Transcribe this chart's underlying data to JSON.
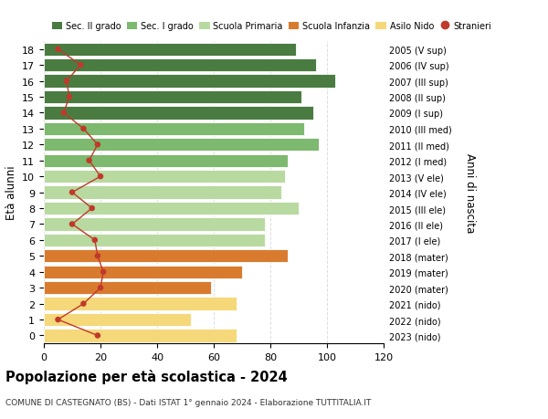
{
  "ages": [
    18,
    17,
    16,
    15,
    14,
    13,
    12,
    11,
    10,
    9,
    8,
    7,
    6,
    5,
    4,
    3,
    2,
    1,
    0
  ],
  "bar_values": [
    89,
    96,
    103,
    91,
    95,
    92,
    97,
    86,
    85,
    84,
    90,
    78,
    78,
    86,
    70,
    59,
    68,
    52,
    68
  ],
  "bar_colors": [
    "#4a7c41",
    "#4a7c41",
    "#4a7c41",
    "#4a7c41",
    "#4a7c41",
    "#7db96e",
    "#7db96e",
    "#7db96e",
    "#b8d9a0",
    "#b8d9a0",
    "#b8d9a0",
    "#b8d9a0",
    "#b8d9a0",
    "#d97b2e",
    "#d97b2e",
    "#d97b2e",
    "#f5d87a",
    "#f5d87a",
    "#f5d87a"
  ],
  "stranieri_values": [
    5,
    13,
    8,
    9,
    7,
    14,
    19,
    16,
    20,
    10,
    17,
    10,
    18,
    19,
    21,
    20,
    14,
    5,
    19
  ],
  "right_labels": [
    "2005 (V sup)",
    "2006 (IV sup)",
    "2007 (III sup)",
    "2008 (II sup)",
    "2009 (I sup)",
    "2010 (III med)",
    "2011 (II med)",
    "2012 (I med)",
    "2013 (V ele)",
    "2014 (IV ele)",
    "2015 (III ele)",
    "2016 (II ele)",
    "2017 (I ele)",
    "2018 (mater)",
    "2019 (mater)",
    "2020 (mater)",
    "2021 (nido)",
    "2022 (nido)",
    "2023 (nido)"
  ],
  "legend_labels": [
    "Sec. II grado",
    "Sec. I grado",
    "Scuola Primaria",
    "Scuola Infanzia",
    "Asilo Nido",
    "Stranieri"
  ],
  "legend_colors": [
    "#4a7c41",
    "#7db96e",
    "#b8d9a0",
    "#d97b2e",
    "#f5d87a",
    "#c0392b"
  ],
  "ylabel": "Età alunni",
  "ylabel_right": "Anni di nascita",
  "title": "Popolazione per età scolastica - 2024",
  "subtitle": "COMUNE DI CASTEGNATO (BS) - Dati ISTAT 1° gennaio 2024 - Elaborazione TUTTITALIA.IT",
  "xlim": [
    0,
    120
  ],
  "stranieri_color": "#c0392b",
  "grid_color": "#dddddd"
}
